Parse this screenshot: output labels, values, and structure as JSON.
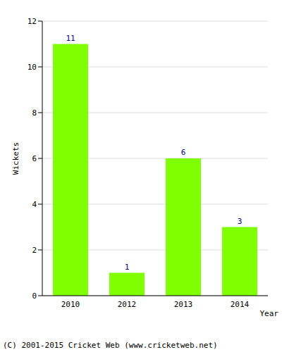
{
  "chart_data": {
    "type": "bar",
    "categories": [
      "2010",
      "2012",
      "2013",
      "2014"
    ],
    "values": [
      11,
      1,
      6,
      3
    ],
    "color": "#80ff00",
    "ylim": [
      0,
      12
    ],
    "yticks": [
      0,
      2,
      4,
      6,
      8,
      10,
      12
    ],
    "grid": true,
    "data_labels": true,
    "xlabel": "Year",
    "ylabel": "Wickets",
    "annotations": [
      "(C) 2001-2015 Cricket Web (www.cricketweb.net)"
    ]
  }
}
